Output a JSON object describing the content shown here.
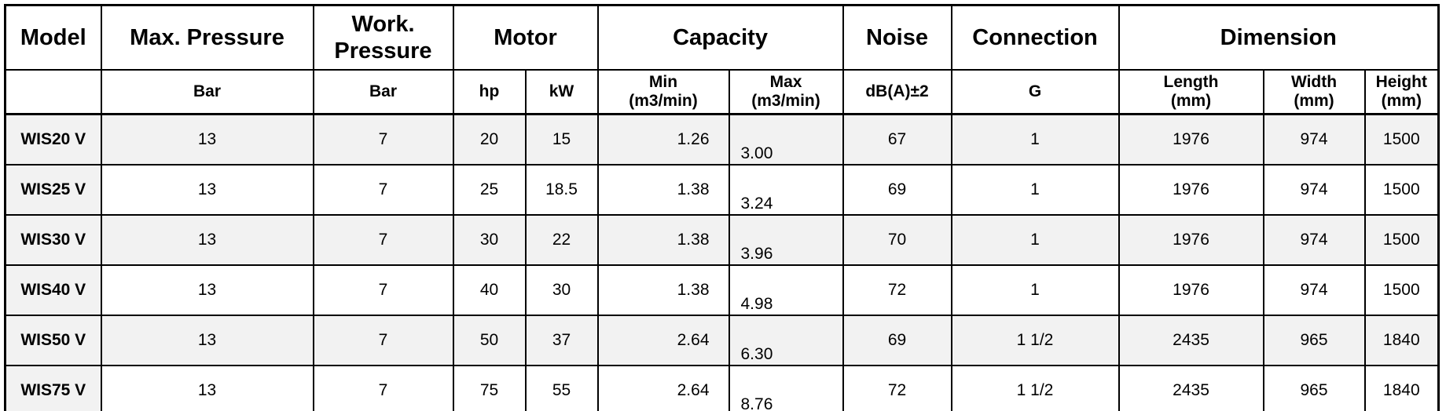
{
  "colors": {
    "row_shade": "#f2f2f2",
    "border": "#000000",
    "text": "#000000",
    "background": "#ffffff"
  },
  "table": {
    "header": {
      "groups": [
        {
          "label": "Model"
        },
        {
          "label": "Max.  Pressure"
        },
        {
          "label": "Work.\nPressure"
        },
        {
          "label": "Motor"
        },
        {
          "label": "Capacity"
        },
        {
          "label": "Noise"
        },
        {
          "label": "Connection"
        },
        {
          "label": "Dimension"
        }
      ],
      "units": [
        "",
        "Bar",
        "Bar",
        "hp",
        "kW",
        "Min\n(m3/min)",
        "Max\n(m3/min)",
        "dB(A)±2",
        "G",
        "Length\n(mm)",
        "Width\n(mm)",
        "Height\n(mm)"
      ]
    },
    "rows": [
      {
        "cells": [
          "WIS20 V",
          "13",
          "7",
          "20",
          "15",
          "1.26",
          "3.00",
          "67",
          "1",
          "1976",
          "974",
          "1500"
        ]
      },
      {
        "cells": [
          "WIS25 V",
          "13",
          "7",
          "25",
          "18.5",
          "1.38",
          "3.24",
          "69",
          "1",
          "1976",
          "974",
          "1500"
        ]
      },
      {
        "cells": [
          "WIS30 V",
          "13",
          "7",
          "30",
          "22",
          "1.38",
          "3.96",
          "70",
          "1",
          "1976",
          "974",
          "1500"
        ]
      },
      {
        "cells": [
          "WIS40 V",
          "13",
          "7",
          "40",
          "30",
          "1.38",
          "4.98",
          "72",
          "1",
          "1976",
          "974",
          "1500"
        ]
      },
      {
        "cells": [
          "WIS50 V",
          "13",
          "7",
          "50",
          "37",
          "2.64",
          "6.30",
          "69",
          "1 1/2",
          "2435",
          "965",
          "1840"
        ]
      },
      {
        "cells": [
          "WIS75 V",
          "13",
          "7",
          "75",
          "55",
          "2.64",
          "8.76",
          "72",
          "1 1/2",
          "2435",
          "965",
          "1840"
        ]
      }
    ]
  },
  "chart_data": {
    "type": "table",
    "title": "",
    "columns": [
      "Model",
      "Max. Pressure (Bar)",
      "Work. Pressure (Bar)",
      "Motor hp",
      "Motor kW",
      "Capacity Min (m3/min)",
      "Capacity Max (m3/min)",
      "Noise dB(A)±2",
      "Connection G",
      "Length (mm)",
      "Width (mm)",
      "Height (mm)"
    ],
    "rows": [
      [
        "WIS20 V",
        13,
        7,
        20,
        15,
        1.26,
        3.0,
        67,
        "1",
        1976,
        974,
        1500
      ],
      [
        "WIS25 V",
        13,
        7,
        25,
        18.5,
        1.38,
        3.24,
        69,
        "1",
        1976,
        974,
        1500
      ],
      [
        "WIS30 V",
        13,
        7,
        30,
        22,
        1.38,
        3.96,
        70,
        "1",
        1976,
        974,
        1500
      ],
      [
        "WIS40 V",
        13,
        7,
        40,
        30,
        1.38,
        4.98,
        72,
        "1",
        1976,
        974,
        1500
      ],
      [
        "WIS50 V",
        13,
        7,
        50,
        37,
        2.64,
        6.3,
        69,
        "1 1/2",
        2435,
        965,
        1840
      ],
      [
        "WIS75 V",
        13,
        7,
        75,
        55,
        2.64,
        8.76,
        72,
        "1 1/2",
        2435,
        965,
        1840
      ]
    ]
  }
}
